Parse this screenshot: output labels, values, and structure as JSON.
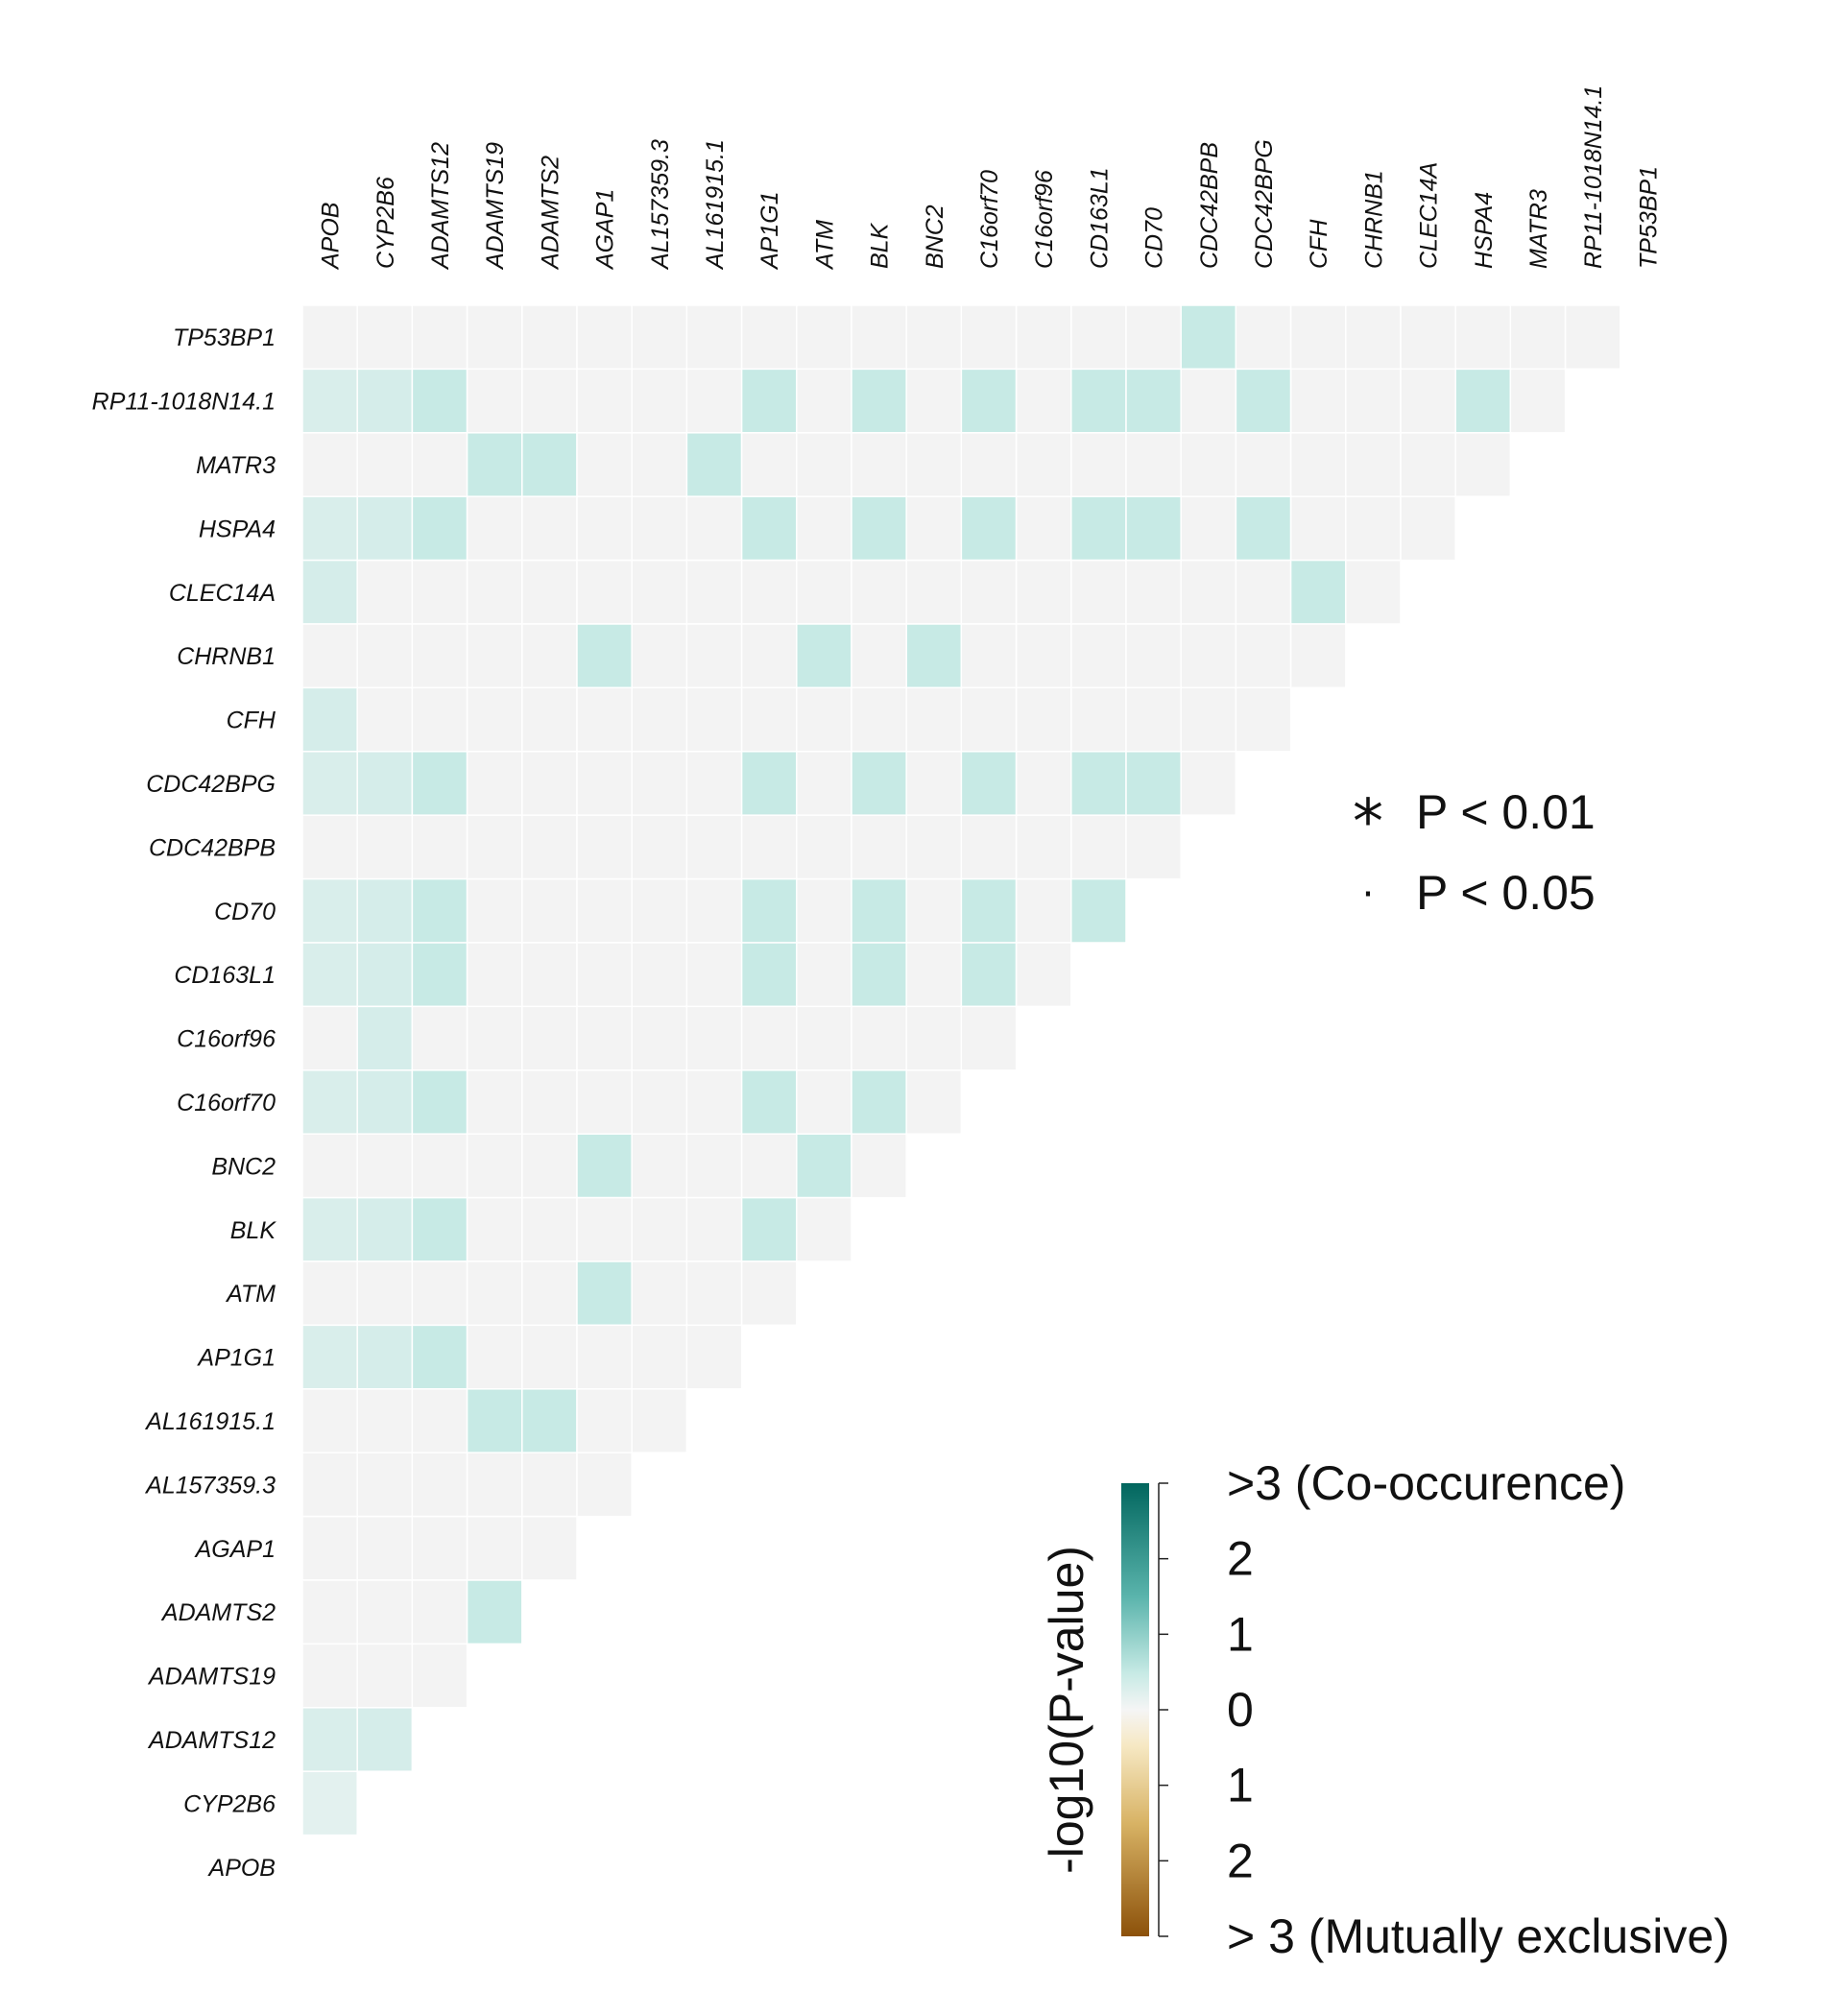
{
  "chart_data": {
    "type": "heatmap",
    "genes": [
      "APOB",
      "CYP2B6",
      "ADAMTS12",
      "ADAMTS19",
      "ADAMTS2",
      "AGAP1",
      "AL157359.3",
      "AL161915.1",
      "AP1G1",
      "ATM",
      "BLK",
      "BNC2",
      "C16orf70",
      "C16orf96",
      "CD163L1",
      "CD70",
      "CDC42BPB",
      "CDC42BPG",
      "CFH",
      "CHRNB1",
      "CLEC14A",
      "HSPA4",
      "MATR3",
      "RP11-1018N14.1",
      "TP53BP1"
    ],
    "values_note_rows_top_to_bottom": "reversed gene order",
    "scale_min": -3,
    "scale_max": 3,
    "cell_values": [
      [
        "TP53BP1",
        [
          0,
          0,
          0,
          0,
          0,
          0,
          0,
          0,
          0,
          0,
          0,
          0,
          0,
          0,
          0,
          0,
          1.0,
          0,
          0,
          0,
          0,
          0,
          0,
          0
        ]
      ],
      [
        "RP11-1018N14.1",
        [
          0.6,
          0.7,
          1.0,
          0,
          0,
          0,
          0,
          0,
          1.0,
          0,
          1.0,
          0,
          1.0,
          0,
          1.0,
          1.0,
          0,
          1.0,
          0,
          0,
          0,
          1.0,
          0
        ]
      ],
      [
        "MATR3",
        [
          0,
          0,
          0,
          1.0,
          1.0,
          0,
          0,
          1.0,
          0,
          0,
          0,
          0,
          0,
          0,
          0,
          0,
          0,
          0,
          0,
          0,
          0,
          0
        ]
      ],
      [
        "HSPA4",
        [
          0.6,
          0.7,
          1.0,
          0,
          0,
          0,
          0,
          0,
          1.0,
          0,
          1.0,
          0,
          1.0,
          0,
          1.0,
          1.0,
          0,
          1.0,
          0,
          0,
          0
        ]
      ],
      [
        "CLEC14A",
        [
          0.7,
          0,
          0,
          0,
          0,
          0,
          0,
          0,
          0,
          0,
          0,
          0,
          0,
          0,
          0,
          0,
          0,
          0,
          1.0,
          0
        ]
      ],
      [
        "CHRNB1",
        [
          0,
          0,
          0,
          0,
          0,
          1.0,
          0,
          0,
          0,
          1.0,
          0,
          1.0,
          0,
          0,
          0,
          0,
          0,
          0,
          0
        ]
      ],
      [
        "CFH",
        [
          0.7,
          0,
          0,
          0,
          0,
          0,
          0,
          0,
          0,
          0,
          0,
          0,
          0,
          0,
          0,
          0,
          0,
          0
        ]
      ],
      [
        "CDC42BPG",
        [
          0.6,
          0.7,
          1.0,
          0,
          0,
          0,
          0,
          0,
          1.0,
          0,
          1.0,
          0,
          1.0,
          0,
          1.0,
          1.0,
          0
        ]
      ],
      [
        "CDC42BPB",
        [
          0,
          0,
          0,
          0,
          0,
          0,
          0,
          0,
          0,
          0,
          0,
          0,
          0,
          0,
          0,
          0
        ]
      ],
      [
        "CD70",
        [
          0.6,
          0.7,
          1.0,
          0,
          0,
          0,
          0,
          0,
          1.0,
          0,
          1.0,
          0,
          1.0,
          0,
          1.0
        ]
      ],
      [
        "CD163L1",
        [
          0.6,
          0.7,
          1.0,
          0,
          0,
          0,
          0,
          0,
          1.0,
          0,
          1.0,
          0,
          1.0,
          0
        ]
      ],
      [
        "C16orf96",
        [
          0,
          0.7,
          0,
          0,
          0,
          0,
          0,
          0,
          0,
          0,
          0,
          0,
          0
        ]
      ],
      [
        "C16orf70",
        [
          0.6,
          0.7,
          1.0,
          0,
          0,
          0,
          0,
          0,
          1.0,
          0,
          1.0,
          0
        ]
      ],
      [
        "BNC2",
        [
          0,
          0,
          0,
          0,
          0,
          1.0,
          0,
          0,
          0,
          1.0,
          0
        ]
      ],
      [
        "BLK",
        [
          0.6,
          0.7,
          1.0,
          0,
          0,
          0,
          0,
          0,
          1.0,
          0
        ]
      ],
      [
        "ATM",
        [
          0,
          0,
          0,
          0,
          0,
          1.0,
          0,
          0,
          0
        ]
      ],
      [
        "AP1G1",
        [
          0.6,
          0.7,
          1.0,
          0,
          0,
          0,
          0,
          0
        ]
      ],
      [
        "AL161915.1",
        [
          0,
          0,
          0,
          1.0,
          1.0,
          0,
          0
        ]
      ],
      [
        "AL157359.3",
        [
          0,
          0,
          0,
          0,
          0,
          0
        ]
      ],
      [
        "AGAP1",
        [
          0,
          0,
          0,
          0,
          0
        ]
      ],
      [
        "ADAMTS2",
        [
          0,
          0,
          0,
          1.0
        ]
      ],
      [
        "ADAMTS19",
        [
          0,
          0,
          0
        ]
      ],
      [
        "ADAMTS12",
        [
          0.6,
          0.7
        ]
      ],
      [
        "CYP2B6",
        [
          0.4
        ]
      ],
      [
        "APOB",
        []
      ]
    ],
    "colors": {
      "neutral_cell": "#f3f3f3",
      "co_strong": "#01665e",
      "co_mid": "#5ab4ac",
      "co_light": "#c7eae5",
      "zero": "#f5f5f5",
      "ex_light": "#f6e8c3",
      "ex_mid": "#d8b365",
      "ex_strong": "#8c510a"
    },
    "significance_legend": [
      {
        "symbol": "*",
        "label": "P < 0.01"
      },
      {
        "symbol": "·",
        "label": "P < 0.05"
      }
    ],
    "colorbar": {
      "title": "-log10(P-value)",
      "tick_labels": [
        ">3 (Co-occurence)",
        "2",
        "1",
        "0",
        "1",
        "2",
        "> 3 (Mutually exclusive)"
      ]
    }
  }
}
